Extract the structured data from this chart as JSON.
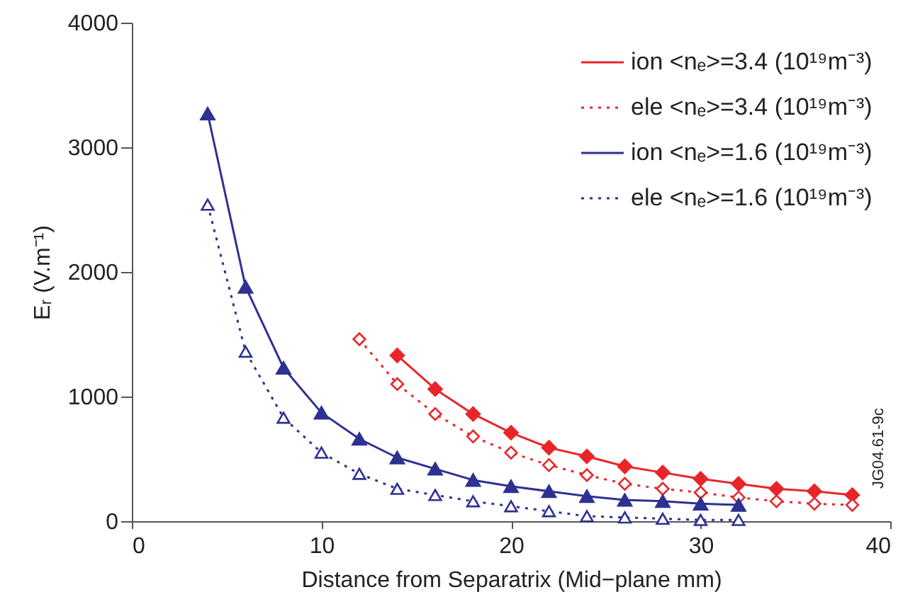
{
  "chart_data": {
    "type": "line",
    "xlabel": "Distance from Separatrix (Mid−plane mm)",
    "ylabel": "Eᵣ (V.m⁻¹)",
    "xlim": [
      0,
      40
    ],
    "xticks": [
      0,
      10,
      20,
      30,
      40
    ],
    "ylim": [
      0,
      4000
    ],
    "yticks": [
      0,
      1000,
      2000,
      3000,
      4000
    ],
    "grid": false,
    "legend": "top right",
    "annotations": [
      "JG04.61-9c"
    ],
    "series": [
      {
        "name": "ion <nₑ>=3.4 (10¹⁹m⁻³)",
        "color": "#e8262a",
        "marker": "diamond",
        "line_style": "solid",
        "x": [
          14,
          16,
          18,
          20,
          22,
          24,
          26,
          28,
          30,
          32,
          34,
          36,
          38
        ],
        "values": [
          1330,
          1060,
          860,
          710,
          590,
          520,
          440,
          390,
          340,
          300,
          260,
          240,
          210
        ]
      },
      {
        "name": "ele <nₑ>=3.4 (10¹⁹m⁻³)",
        "color": "#e8262a",
        "marker": "diamond",
        "line_style": "dotted",
        "x": [
          12,
          14,
          16,
          18,
          20,
          22,
          24,
          26,
          28,
          30,
          32,
          34,
          36,
          38
        ],
        "values": [
          1460,
          1100,
          860,
          680,
          550,
          450,
          370,
          300,
          260,
          230,
          190,
          160,
          140,
          130
        ]
      },
      {
        "name": "ion <nₑ>=1.6 (10¹⁹m⁻³)",
        "color": "#2e3192",
        "marker": "triangle",
        "line_style": "solid",
        "x": [
          4,
          6,
          8,
          10,
          12,
          14,
          16,
          18,
          20,
          22,
          24,
          26,
          28,
          30,
          32
        ],
        "values": [
          3270,
          1880,
          1230,
          870,
          660,
          510,
          420,
          330,
          280,
          240,
          200,
          170,
          160,
          140,
          130
        ]
      },
      {
        "name": "ele <nₑ>=1.6 (10¹⁹m⁻³)",
        "color": "#2e3192",
        "marker": "triangle",
        "line_style": "dotted",
        "x": [
          4,
          6,
          8,
          10,
          12,
          14,
          16,
          18,
          20,
          22,
          24,
          26,
          28,
          30,
          32
        ],
        "values": [
          2540,
          1360,
          830,
          550,
          380,
          260,
          210,
          160,
          120,
          80,
          40,
          30,
          20,
          10,
          10
        ]
      }
    ]
  }
}
